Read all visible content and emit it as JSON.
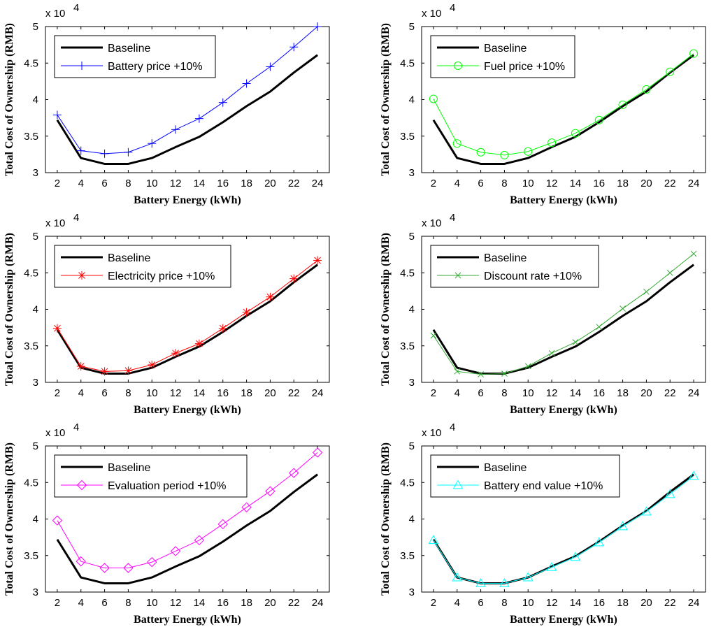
{
  "chart_data": [
    {
      "type": "line",
      "xlabel": "Battery Energy (kWh)",
      "ylabel": "Total Cost of Ownership (RMB)",
      "y_multiplier_label": "x 10",
      "y_multiplier_exp": "4",
      "x": [
        2,
        4,
        6,
        8,
        10,
        12,
        14,
        16,
        18,
        20,
        22,
        24
      ],
      "xticks": [
        "2",
        "4",
        "6",
        "8",
        "10",
        "12",
        "14",
        "16",
        "18",
        "20",
        "22",
        "24"
      ],
      "yticks": [
        "3",
        "3.5",
        "4",
        "4.5",
        "5"
      ],
      "xlim": [
        1,
        25
      ],
      "ylim": [
        3,
        5
      ],
      "legend_position": "top-left",
      "series": [
        {
          "name": "Baseline",
          "color": "#000000",
          "marker": "none",
          "values": [
            3.72,
            3.2,
            3.12,
            3.12,
            3.2,
            3.35,
            3.49,
            3.69,
            3.91,
            4.11,
            4.37,
            4.61
          ]
        },
        {
          "name": "Battery price +10%",
          "color": "#0000ff",
          "marker": "plus",
          "values": [
            3.79,
            3.3,
            3.26,
            3.28,
            3.4,
            3.59,
            3.74,
            3.96,
            4.22,
            4.45,
            4.72,
            5.0
          ]
        }
      ]
    },
    {
      "type": "line",
      "xlabel": "Battery Energy (kWh)",
      "ylabel": "Total Cost of Ownership (RMB)",
      "y_multiplier_label": "x 10",
      "y_multiplier_exp": "4",
      "x": [
        2,
        4,
        6,
        8,
        10,
        12,
        14,
        16,
        18,
        20,
        22,
        24
      ],
      "xticks": [
        "2",
        "4",
        "6",
        "8",
        "10",
        "12",
        "14",
        "16",
        "18",
        "20",
        "22",
        "24"
      ],
      "yticks": [
        "3",
        "3.5",
        "4",
        "4.5",
        "5"
      ],
      "xlim": [
        1,
        25
      ],
      "ylim": [
        3,
        5
      ],
      "legend_position": "top-left",
      "series": [
        {
          "name": "Baseline",
          "color": "#000000",
          "marker": "none",
          "values": [
            3.72,
            3.2,
            3.12,
            3.12,
            3.2,
            3.35,
            3.49,
            3.69,
            3.91,
            4.11,
            4.37,
            4.61
          ]
        },
        {
          "name": "Fuel price +10%",
          "color": "#00ff00",
          "marker": "circle",
          "values": [
            4.01,
            3.4,
            3.28,
            3.24,
            3.29,
            3.41,
            3.54,
            3.72,
            3.93,
            4.14,
            4.38,
            4.63
          ]
        }
      ]
    },
    {
      "type": "line",
      "xlabel": "Battery Energy (kWh)",
      "ylabel": "Total Cost of Ownership (RMB)",
      "y_multiplier_label": "x 10",
      "y_multiplier_exp": "4",
      "x": [
        2,
        4,
        6,
        8,
        10,
        12,
        14,
        16,
        18,
        20,
        22,
        24
      ],
      "xticks": [
        "2",
        "4",
        "6",
        "8",
        "10",
        "12",
        "14",
        "16",
        "18",
        "20",
        "22",
        "24"
      ],
      "yticks": [
        "3",
        "3.5",
        "4",
        "4.5",
        "5"
      ],
      "xlim": [
        1,
        25
      ],
      "ylim": [
        3,
        5
      ],
      "legend_position": "top-left",
      "series": [
        {
          "name": "Baseline",
          "color": "#000000",
          "marker": "none",
          "values": [
            3.72,
            3.2,
            3.12,
            3.12,
            3.2,
            3.35,
            3.49,
            3.69,
            3.91,
            4.11,
            4.37,
            4.61
          ]
        },
        {
          "name": "Electricity price +10%",
          "color": "#ff0000",
          "marker": "star",
          "values": [
            3.74,
            3.22,
            3.15,
            3.16,
            3.24,
            3.4,
            3.53,
            3.74,
            3.96,
            4.17,
            4.42,
            4.67
          ]
        }
      ]
    },
    {
      "type": "line",
      "xlabel": "Battery Energy (kWh)",
      "ylabel": "Total Cost of Ownership (RMB)",
      "y_multiplier_label": "x 10",
      "y_multiplier_exp": "4",
      "x": [
        2,
        4,
        6,
        8,
        10,
        12,
        14,
        16,
        18,
        20,
        22,
        24
      ],
      "xticks": [
        "2",
        "4",
        "6",
        "8",
        "10",
        "12",
        "14",
        "16",
        "18",
        "20",
        "22",
        "24"
      ],
      "yticks": [
        "3",
        "3.5",
        "4",
        "4.5",
        "5"
      ],
      "xlim": [
        1,
        25
      ],
      "ylim": [
        3,
        5
      ],
      "legend_position": "top-left",
      "series": [
        {
          "name": "Baseline",
          "color": "#000000",
          "marker": "none",
          "values": [
            3.72,
            3.2,
            3.12,
            3.12,
            3.2,
            3.35,
            3.49,
            3.69,
            3.91,
            4.11,
            4.37,
            4.61
          ]
        },
        {
          "name": "Discount rate +10%",
          "color": "#33aa33",
          "marker": "x",
          "values": [
            3.64,
            3.15,
            3.11,
            3.12,
            3.22,
            3.4,
            3.55,
            3.76,
            4.01,
            4.24,
            4.5,
            4.76
          ]
        }
      ]
    },
    {
      "type": "line",
      "xlabel": "Battery Energy (kWh)",
      "ylabel": "Total Cost of Ownership (RMB)",
      "y_multiplier_label": "x 10",
      "y_multiplier_exp": "4",
      "x": [
        2,
        4,
        6,
        8,
        10,
        12,
        14,
        16,
        18,
        20,
        22,
        24
      ],
      "xticks": [
        "2",
        "4",
        "6",
        "8",
        "10",
        "12",
        "14",
        "16",
        "18",
        "20",
        "22",
        "24"
      ],
      "yticks": [
        "3",
        "3.5",
        "4",
        "4.5",
        "5"
      ],
      "xlim": [
        1,
        25
      ],
      "ylim": [
        3,
        5
      ],
      "legend_position": "top-left",
      "series": [
        {
          "name": "Baseline",
          "color": "#000000",
          "marker": "none",
          "values": [
            3.72,
            3.2,
            3.12,
            3.12,
            3.2,
            3.35,
            3.49,
            3.69,
            3.91,
            4.11,
            4.37,
            4.61
          ]
        },
        {
          "name": "Evaluation period +10%",
          "color": "#ff00ff",
          "marker": "diamond",
          "values": [
            3.98,
            3.42,
            3.33,
            3.33,
            3.41,
            3.56,
            3.71,
            3.93,
            4.16,
            4.38,
            4.63,
            4.91
          ]
        }
      ]
    },
    {
      "type": "line",
      "xlabel": "Battery Energy (kWh)",
      "ylabel": "Total Cost of Ownership (RMB)",
      "y_multiplier_label": "x 10",
      "y_multiplier_exp": "4",
      "x": [
        2,
        4,
        6,
        8,
        10,
        12,
        14,
        16,
        18,
        20,
        22,
        24
      ],
      "xticks": [
        "2",
        "4",
        "6",
        "8",
        "10",
        "12",
        "14",
        "16",
        "18",
        "20",
        "22",
        "24"
      ],
      "yticks": [
        "3",
        "3.5",
        "4",
        "4.5",
        "5"
      ],
      "xlim": [
        1,
        25
      ],
      "ylim": [
        3,
        5
      ],
      "legend_position": "top-left",
      "series": [
        {
          "name": "Baseline",
          "color": "#000000",
          "marker": "none",
          "values": [
            3.72,
            3.2,
            3.12,
            3.12,
            3.2,
            3.35,
            3.49,
            3.69,
            3.91,
            4.11,
            4.37,
            4.61
          ]
        },
        {
          "name": "Battery end value +10%",
          "color": "#00ffff",
          "marker": "triangle",
          "values": [
            3.71,
            3.2,
            3.12,
            3.12,
            3.2,
            3.34,
            3.48,
            3.68,
            3.9,
            4.1,
            4.34,
            4.59
          ]
        }
      ]
    }
  ]
}
